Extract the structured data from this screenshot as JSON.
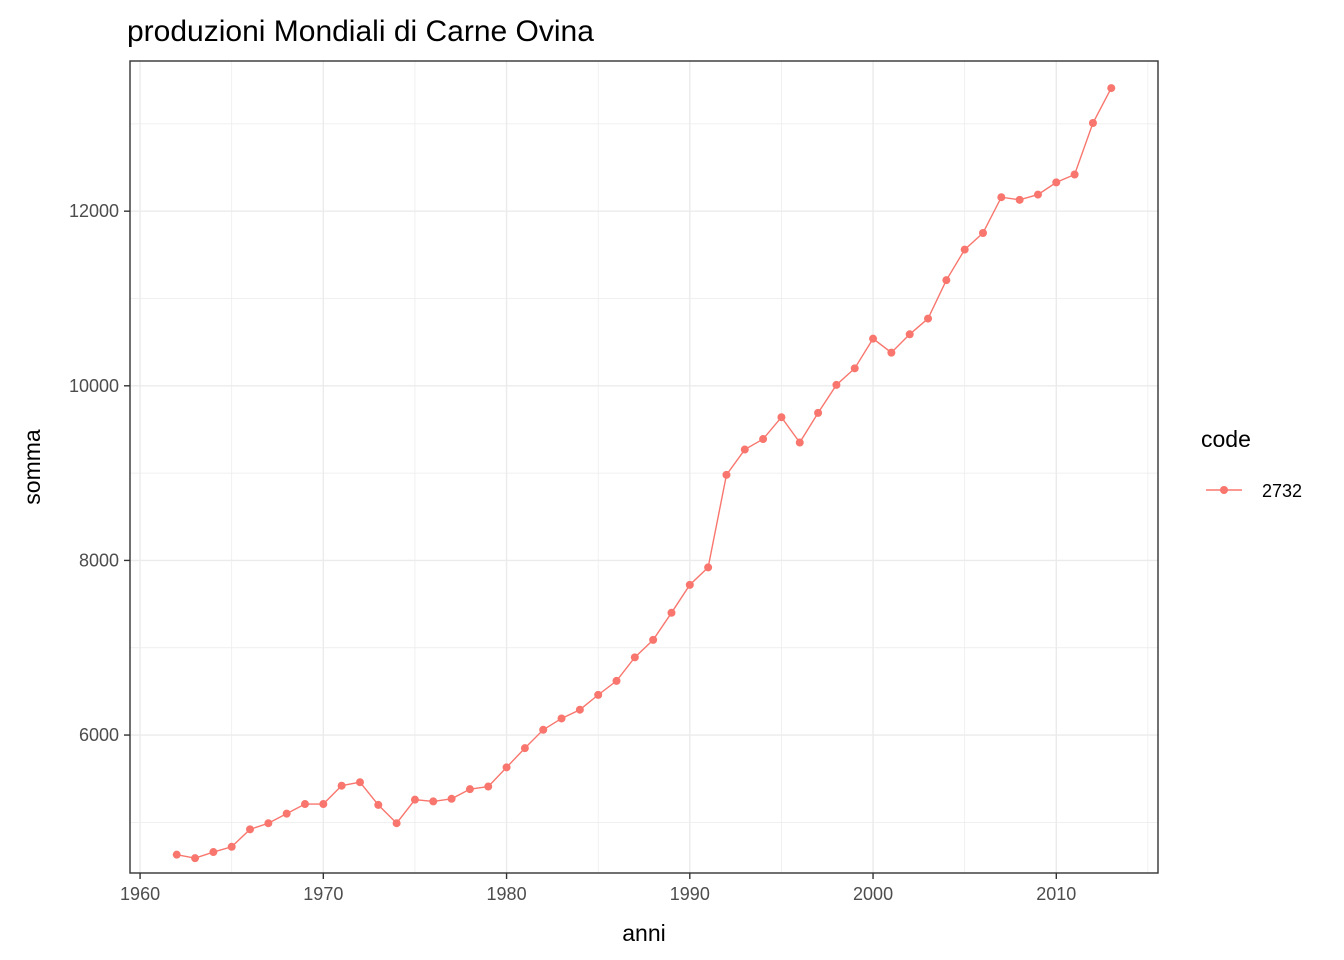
{
  "chart_data": {
    "type": "line",
    "title": "produzioni Mondiali di Carne Ovina",
    "xlabel": "anni",
    "ylabel": "somma",
    "xlim": [
      1959.45,
      2015.55
    ],
    "ylim": [
      4420,
      13720
    ],
    "x_ticks": [
      1960,
      1970,
      1980,
      1990,
      2000,
      2010
    ],
    "y_ticks": [
      6000,
      8000,
      10000,
      12000
    ],
    "grid": true,
    "legend": {
      "title": "code",
      "position": "right"
    },
    "series": [
      {
        "name": "2732",
        "color": "#F8766D",
        "x": [
          1962,
          1963,
          1964,
          1965,
          1966,
          1967,
          1968,
          1969,
          1970,
          1971,
          1972,
          1973,
          1974,
          1975,
          1976,
          1977,
          1978,
          1979,
          1980,
          1981,
          1982,
          1983,
          1984,
          1985,
          1986,
          1987,
          1988,
          1989,
          1990,
          1991,
          1992,
          1993,
          1994,
          1995,
          1996,
          1997,
          1998,
          1999,
          2000,
          2001,
          2002,
          2003,
          2004,
          2005,
          2006,
          2007,
          2008,
          2009,
          2010,
          2011,
          2012,
          2013
        ],
        "values": [
          4630,
          4590,
          4660,
          4720,
          4920,
          4990,
          5100,
          5210,
          5210,
          5420,
          5460,
          5200,
          4990,
          5260,
          5240,
          5270,
          5380,
          5410,
          5630,
          5850,
          6060,
          6190,
          6290,
          6460,
          6620,
          6890,
          7090,
          7400,
          7720,
          7920,
          8980,
          9270,
          9390,
          9640,
          9350,
          9690,
          10010,
          10200,
          10540,
          10380,
          10590,
          10770,
          11210,
          11560,
          11750,
          12160,
          12130,
          12190,
          12330,
          12420,
          13010,
          13410
        ]
      }
    ]
  }
}
